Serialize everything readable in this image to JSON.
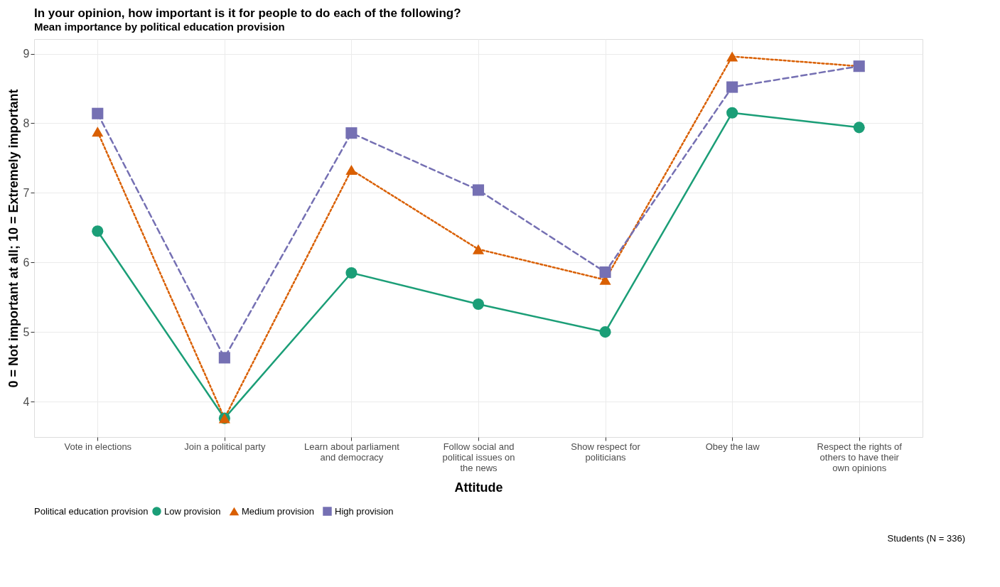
{
  "chart_data": {
    "type": "line",
    "title": "In your opinion, how important is it for people to do each of the following?",
    "subtitle": "Mean importance by political education provision",
    "xlabel": "Attitude",
    "ylabel": "0 = Not important at all; 10 = Extremely important",
    "legend_title": "Political education provision",
    "categories": [
      "Vote in elections",
      "Join a political party",
      "Learn about parliament and democracy",
      "Follow social and political issues on the news",
      "Show respect for politicians",
      "Obey the law",
      "Respect the rights of others to have their own opinions"
    ],
    "series": [
      {
        "name": "Low provision",
        "color": "#1b9e77",
        "marker": "circle",
        "line_style": "solid",
        "values": [
          6.45,
          3.76,
          5.85,
          5.4,
          5.0,
          8.15,
          7.94
        ]
      },
      {
        "name": "Medium provision",
        "color": "#d95f02",
        "marker": "triangle",
        "line_style": "dotted",
        "values": [
          7.88,
          3.76,
          7.33,
          6.19,
          5.75,
          8.96,
          8.82
        ]
      },
      {
        "name": "High provision",
        "color": "#7570b3",
        "marker": "square",
        "line_style": "dashed",
        "values": [
          8.14,
          4.63,
          7.86,
          7.04,
          5.86,
          8.52,
          8.82
        ]
      }
    ],
    "ylim": [
      3.49,
      9.21
    ],
    "yticks": [
      4,
      5,
      6,
      7,
      8,
      9
    ],
    "grid": true,
    "legend": "bottom",
    "annotations": [
      "Students (N = 336)"
    ]
  }
}
